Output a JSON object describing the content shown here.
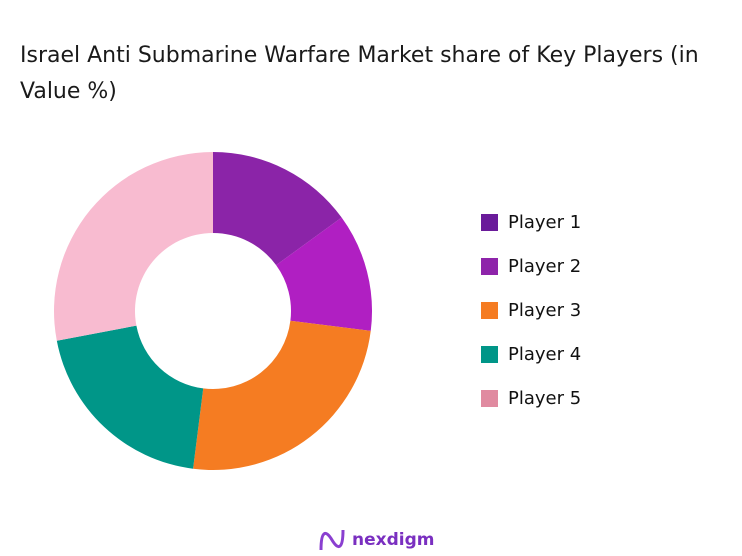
{
  "chart_data": {
    "type": "pie",
    "donut": true,
    "title": "Israel Anti Submarine Warfare Market share of Key Players (in Value %)",
    "categories": [
      "Player 1",
      "Player 2",
      "Player 3",
      "Player 4",
      "Player 5"
    ],
    "values": [
      15,
      12,
      25,
      20,
      28
    ],
    "slice_colors": [
      "#8b24a8",
      "#b01fc2",
      "#f57c22",
      "#009688",
      "#f8bbd0"
    ],
    "legend_colors": [
      "#6a1b9a",
      "#8e24aa",
      "#f57c22",
      "#009688",
      "#e08aa0"
    ],
    "legend_position": "right"
  },
  "brand": {
    "name": "nexdigm"
  }
}
